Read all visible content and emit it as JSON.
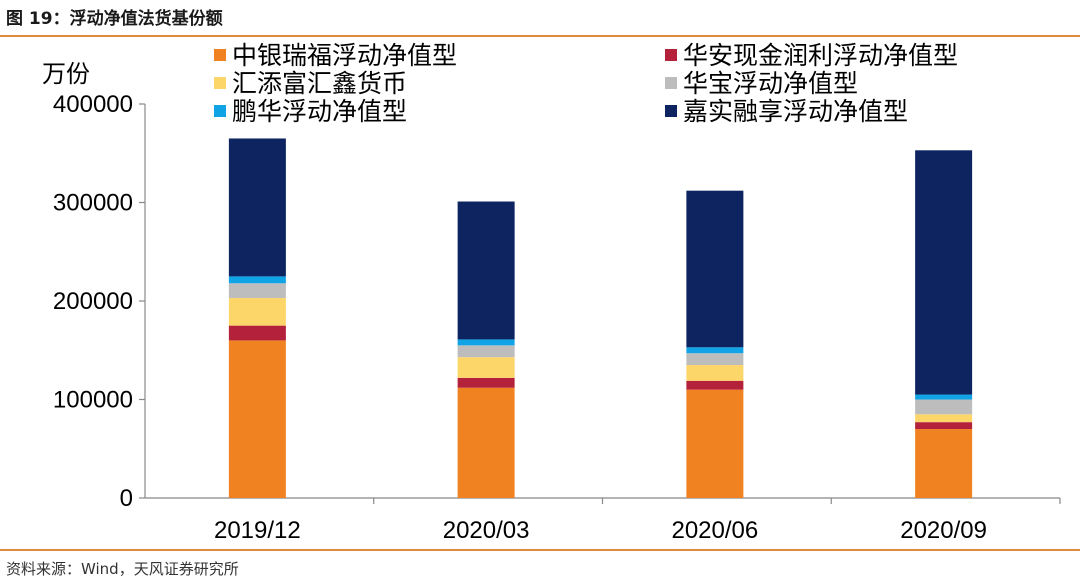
{
  "figure": {
    "title": "图 19：浮动净值法货基份额",
    "source": "资料来源：Wind，天风证券研究所"
  },
  "colors": {
    "rule": "#e08a3c",
    "axis": "#888888"
  },
  "chart_data": {
    "type": "bar",
    "stacked": true,
    "ylabel": "万份",
    "ylim": [
      0,
      400000
    ],
    "yticks": [
      0,
      100000,
      200000,
      300000,
      400000
    ],
    "ytick_labels": [
      "0",
      "100000",
      "200000",
      "300000",
      "400000"
    ],
    "categories": [
      "2019/12",
      "2020/03",
      "2020/06",
      "2020/09"
    ],
    "legend_position": "top",
    "series": [
      {
        "name": "中银瑞福浮动净值型",
        "color": "#f08221",
        "values": [
          160000,
          112000,
          110000,
          70000
        ]
      },
      {
        "name": "华安现金润利浮动净值型",
        "color": "#b3223a",
        "values": [
          15000,
          10000,
          9000,
          7000
        ]
      },
      {
        "name": "汇添富汇鑫货币",
        "color": "#fdd66a",
        "values": [
          28000,
          21000,
          16000,
          8000
        ]
      },
      {
        "name": "华宝浮动净值型",
        "color": "#bdbdbd",
        "values": [
          15000,
          12000,
          12000,
          15000
        ]
      },
      {
        "name": "鹏华浮动净值型",
        "color": "#10a3e6",
        "values": [
          7000,
          6000,
          6000,
          5000
        ]
      },
      {
        "name": "嘉实融享浮动净值型",
        "color": "#0d2461",
        "values": [
          140000,
          140000,
          159000,
          248000
        ]
      }
    ]
  }
}
